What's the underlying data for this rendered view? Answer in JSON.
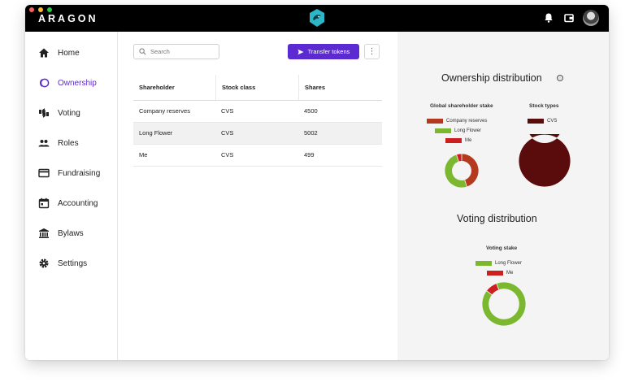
{
  "app": {
    "brand": "ARAGON"
  },
  "sidebar": {
    "items": [
      {
        "label": "Home",
        "icon": "home-icon",
        "active": false
      },
      {
        "label": "Ownership",
        "icon": "ownership-icon",
        "active": true
      },
      {
        "label": "Voting",
        "icon": "voting-icon",
        "active": false
      },
      {
        "label": "Roles",
        "icon": "roles-icon",
        "active": false
      },
      {
        "label": "Fundraising",
        "icon": "card-icon",
        "active": false
      },
      {
        "label": "Accounting",
        "icon": "calendar-icon",
        "active": false
      },
      {
        "label": "Bylaws",
        "icon": "bank-icon",
        "active": false
      },
      {
        "label": "Settings",
        "icon": "gear-icon",
        "active": false
      }
    ]
  },
  "toolbar": {
    "search_placeholder": "Search",
    "transfer_label": "Transfer tokens",
    "more_label": "⋮"
  },
  "table": {
    "headers": [
      "Shareholder",
      "Stock class",
      "Shares"
    ],
    "rows": [
      {
        "shareholder": "Company reserves",
        "stock_class": "CVS",
        "shares": "4500"
      },
      {
        "shareholder": "Long Flower",
        "stock_class": "CVS",
        "shares": "5002"
      },
      {
        "shareholder": "Me",
        "stock_class": "CVS",
        "shares": "499"
      }
    ]
  },
  "panel": {
    "ownership_title": "Ownership distribution",
    "info_icon": "ⓘ",
    "voting_title": "Voting distribution",
    "global_stake": {
      "title": "Global shareholder stake",
      "legend": [
        "Company reserves",
        "Long Flower",
        "Me"
      ]
    },
    "stock_types": {
      "title": "Stock types",
      "legend": [
        "CVS"
      ]
    },
    "voting_stake": {
      "title": "Voting stake",
      "legend": [
        "Long Flower",
        "Me"
      ]
    }
  },
  "colors": {
    "accent": "#5c2ad1",
    "company_reserves": "#b43a1e",
    "long_flower": "#7cb82f",
    "me": "#cc1f1f",
    "cvs": "#5a0b0b"
  },
  "chart_data": [
    {
      "type": "pie",
      "title": "Global shareholder stake",
      "categories": [
        "Company reserves",
        "Long Flower",
        "Me"
      ],
      "values": [
        4500,
        5002,
        499
      ]
    },
    {
      "type": "pie",
      "title": "Stock types",
      "categories": [
        "CVS"
      ],
      "values": [
        10001
      ]
    },
    {
      "type": "pie",
      "title": "Voting stake",
      "categories": [
        "Long Flower",
        "Me"
      ],
      "values": [
        5002,
        499
      ]
    }
  ]
}
